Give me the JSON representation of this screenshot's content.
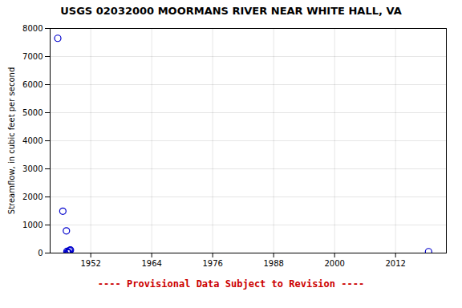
{
  "chart_data": {
    "type": "scatter",
    "title": "USGS 02032000 MOORMANS RIVER NEAR WHITE HALL, VA",
    "ylabel": "Streamflow, in cubic feet per second",
    "x": [
      1945.5,
      1946.5,
      1947.2,
      1947.3,
      1947.4,
      1947.5,
      1947.6,
      1947.7,
      1947.8,
      1947.9,
      1948.0,
      2018.5
    ],
    "values": [
      7650,
      1490,
      790,
      60,
      30,
      20,
      15,
      10,
      80,
      100,
      110,
      50
    ],
    "color": "#0000cc",
    "marker": "circle",
    "xlim": [
      1944,
      2022
    ],
    "xticks": [
      1952,
      1964,
      1976,
      1988,
      2000,
      2012
    ],
    "ylim": [
      0,
      8000
    ],
    "yticks": [
      0,
      1000,
      2000,
      3000,
      4000,
      5000,
      6000,
      7000,
      8000
    ],
    "grid": true,
    "annotations": [
      {
        "text": "---- Provisional Data Subject to Revision ----",
        "color": "#cc0000"
      }
    ]
  }
}
